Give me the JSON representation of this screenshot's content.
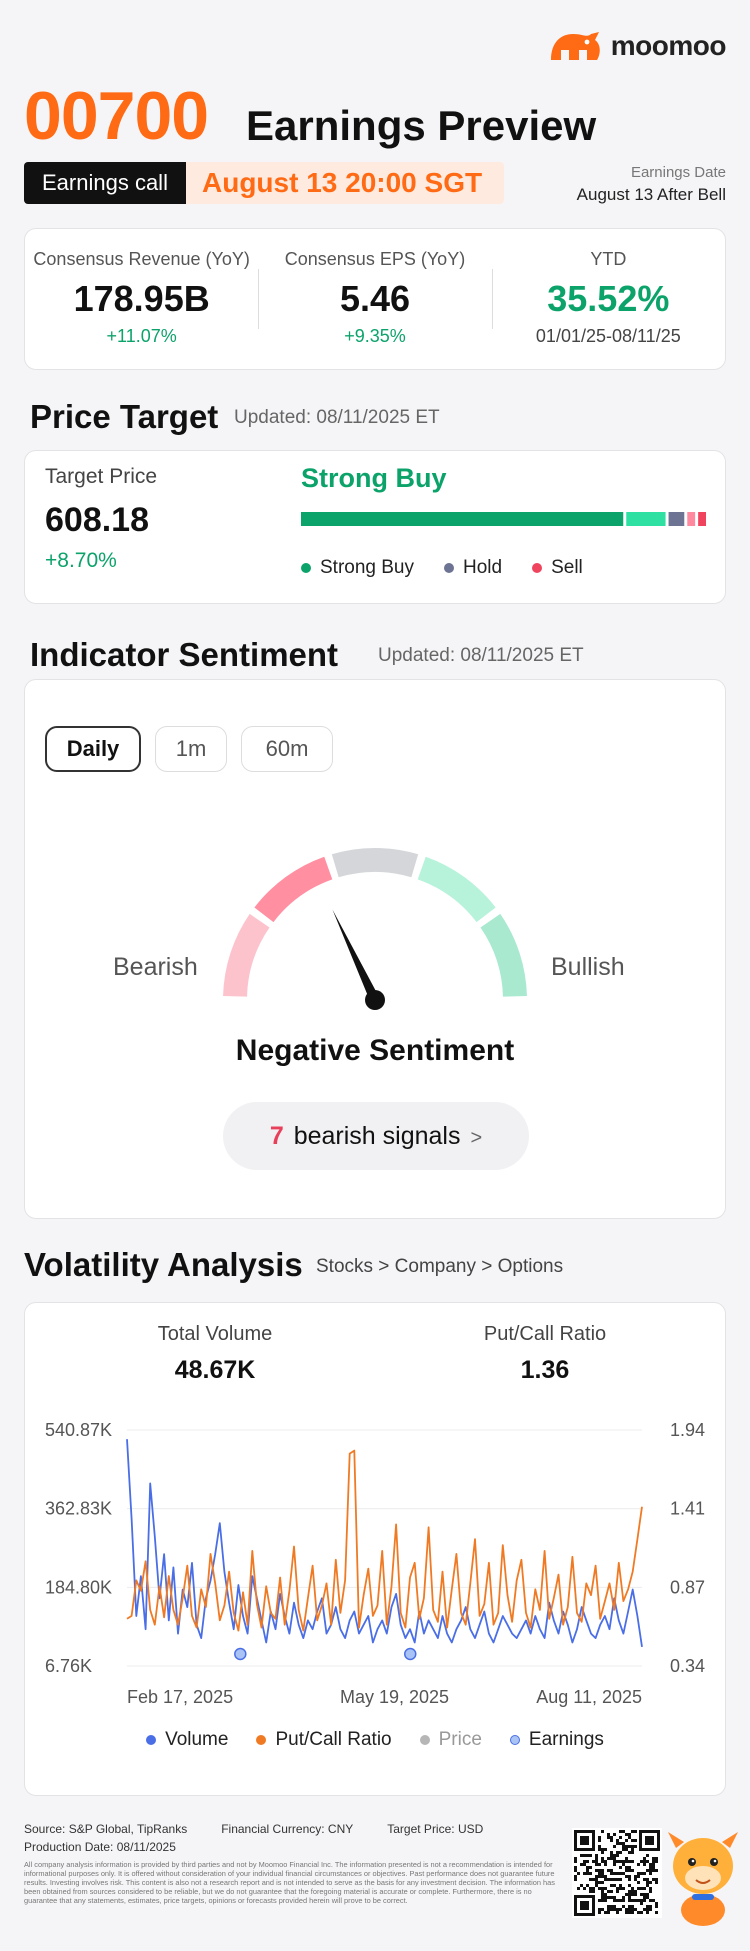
{
  "brand": {
    "name": "moomoo",
    "logo": "moomoo-logo-icon",
    "accent": "#ff6a14"
  },
  "header": {
    "ticker": "00700",
    "title": "Earnings Preview",
    "call_label": "Earnings call",
    "call_date": "August 13 20:00 SGT",
    "earnings_date_label": "Earnings Date",
    "earnings_date_value": "August 13 After Bell"
  },
  "metrics": [
    {
      "label": "Consensus Revenue (YoY)",
      "value": "178.95B",
      "sub": "+11.07%"
    },
    {
      "label": "Consensus EPS (YoY)",
      "value": "5.46",
      "sub": "+9.35%"
    },
    {
      "label": "YTD",
      "value": "35.52%",
      "sub": "01/01/25-08/11/25"
    }
  ],
  "price_target": {
    "title": "Price Target",
    "updated": "Updated: 08/11/2025 ET",
    "label": "Target Price",
    "value": "608.18",
    "change": "+8.70%",
    "rating": "Strong Buy",
    "distribution": [
      {
        "name": "Strong Buy",
        "share": 0.82,
        "color": "#0ca36b"
      },
      {
        "name": "Buy",
        "share": 0.1,
        "color": "#2fe0a3"
      },
      {
        "name": "Hold",
        "share": 0.04,
        "color": "#6c7393"
      },
      {
        "name": "Underperform",
        "share": 0.02,
        "color": "#ff8aa0"
      },
      {
        "name": "Sell",
        "share": 0.02,
        "color": "#f0445e"
      }
    ],
    "legend": [
      {
        "label": "Strong Buy",
        "color": "#0ca36b"
      },
      {
        "label": "Hold",
        "color": "#6c7393"
      },
      {
        "label": "Sell",
        "color": "#f0445e"
      }
    ]
  },
  "sentiment": {
    "title": "Indicator Sentiment",
    "updated": "Updated: 08/11/2025 ET",
    "tabs": [
      "Daily",
      "1m",
      "60m"
    ],
    "active_tab": "Daily",
    "bearish_label": "Bearish",
    "bullish_label": "Bullish",
    "label": "Negative Sentiment",
    "needle_level": 0.36,
    "signal_count": "7",
    "signal_text": "bearish signals",
    "gauge_colors": [
      "#fdc3cc",
      "#ff8fa1",
      "#d4d6da",
      "#b7f2da",
      "#a8e9d0"
    ]
  },
  "volatility": {
    "title": "Volatility Analysis",
    "breadcrumb": "Stocks > Company > Options",
    "total_volume_label": "Total Volume",
    "total_volume": "48.67K",
    "pcr_label": "Put/Call Ratio",
    "pcr": "1.36"
  },
  "chart_data": {
    "type": "line",
    "left_axis_ticks": [
      "540.87K",
      "362.83K",
      "184.80K",
      "6.76K"
    ],
    "right_axis_ticks": [
      "1.94",
      "1.41",
      "0.87",
      "0.34"
    ],
    "x_ticks": [
      "Feb 17, 2025",
      "May 19, 2025",
      "Aug 11, 2025"
    ],
    "ylim_left": [
      6760,
      540870
    ],
    "ylim_right": [
      0.34,
      1.94
    ],
    "series": [
      {
        "name": "Volume",
        "color": "#4a6ee6",
        "values": [
          520000,
          340000,
          120000,
          210000,
          90000,
          420000,
          300000,
          160000,
          260000,
          110000,
          230000,
          80000,
          180000,
          140000,
          240000,
          100000,
          70000,
          160000,
          200000,
          260000,
          330000,
          220000,
          150000,
          90000,
          190000,
          120000,
          80000,
          210000,
          160000,
          110000,
          60000,
          130000,
          90000,
          170000,
          120000,
          80000,
          150000,
          100000,
          70000,
          110000,
          90000,
          130000,
          160000,
          80000,
          100000,
          140000,
          90000,
          70000,
          110000,
          130000,
          80000,
          100000,
          120000,
          60000,
          90000,
          110000,
          80000,
          140000,
          170000,
          100000,
          70000,
          90000,
          60000,
          130000,
          80000,
          110000,
          90000,
          70000,
          120000,
          80000,
          60000,
          90000,
          110000,
          140000,
          90000,
          70000,
          100000,
          130000,
          80000,
          60000,
          90000,
          120000,
          100000,
          80000,
          70000,
          90000,
          110000,
          80000,
          120000,
          90000,
          70000,
          150000,
          110000,
          80000,
          130000,
          100000,
          60000,
          90000,
          140000,
          110000,
          80000,
          70000,
          100000,
          120000,
          90000,
          160000,
          110000,
          80000,
          130000,
          180000,
          120000,
          50000
        ]
      },
      {
        "name": "Put/Call Ratio",
        "color": "#f07a24",
        "values": [
          0.66,
          0.68,
          0.92,
          0.85,
          1.05,
          0.72,
          0.62,
          0.88,
          0.67,
          0.95,
          0.72,
          0.62,
          0.8,
          1.02,
          0.68,
          0.6,
          0.86,
          0.74,
          1.1,
          0.9,
          0.65,
          0.75,
          0.98,
          0.7,
          0.58,
          0.84,
          0.62,
          1.12,
          0.76,
          0.6,
          0.88,
          0.7,
          0.66,
          0.94,
          0.62,
          0.85,
          1.15,
          0.72,
          0.58,
          0.8,
          1.02,
          0.65,
          0.75,
          0.9,
          0.62,
          1.06,
          0.7,
          0.92,
          1.78,
          1.8,
          0.6,
          0.82,
          1.0,
          0.68,
          0.75,
          1.12,
          0.62,
          0.88,
          1.3,
          0.7,
          0.6,
          0.94,
          1.04,
          0.66,
          0.8,
          1.28,
          0.72,
          0.64,
          0.98,
          0.6,
          0.86,
          1.1,
          0.7,
          0.62,
          0.9,
          1.2,
          0.68,
          0.76,
          1.04,
          0.62,
          0.7,
          1.16,
          0.82,
          0.64,
          0.92,
          1.06,
          0.7,
          0.6,
          0.86,
          0.72,
          1.12,
          0.66,
          0.8,
          0.96,
          0.62,
          0.74,
          1.08,
          0.7,
          0.64,
          0.9,
          0.82,
          1.02,
          0.66,
          0.78,
          0.9,
          0.72,
          1.04,
          0.78,
          0.86,
          0.98,
          1.2,
          1.42
        ]
      },
      {
        "name": "Price",
        "color": "#b6b6b6",
        "values": []
      },
      {
        "name": "Earnings",
        "color": "#a9c3f5",
        "values": []
      }
    ],
    "earnings_markers": [
      0.22,
      0.55
    ]
  },
  "footer": {
    "source": "Source: S&P Global, TipRanks",
    "currency": "Financial Currency: CNY",
    "target_currency": "Target Price: USD",
    "production": "Production Date: 08/11/2025",
    "disclaimer": "All company analysis information is provided by third parties and not by Moomoo Financial Inc. The information presented is not a recommendation is intended for informational purposes only. It is offered without consideration of your individual financial circumstances or objectives. Past performance does not guarantee future results. Investing involves risk. This content is also not a research report and is not intended to serve as the basis for any investment decision. The information has been obtained from sources considered to be reliable, but we do not guarantee that the foregoing material is accurate or complete. Furthermore, there is no guarantee that any statements, estimates, price targets, opinions or forecasts provided herein will prove to be correct.",
    "qr": "qr-code-icon",
    "mascot": "moomoo-mascot-icon"
  }
}
